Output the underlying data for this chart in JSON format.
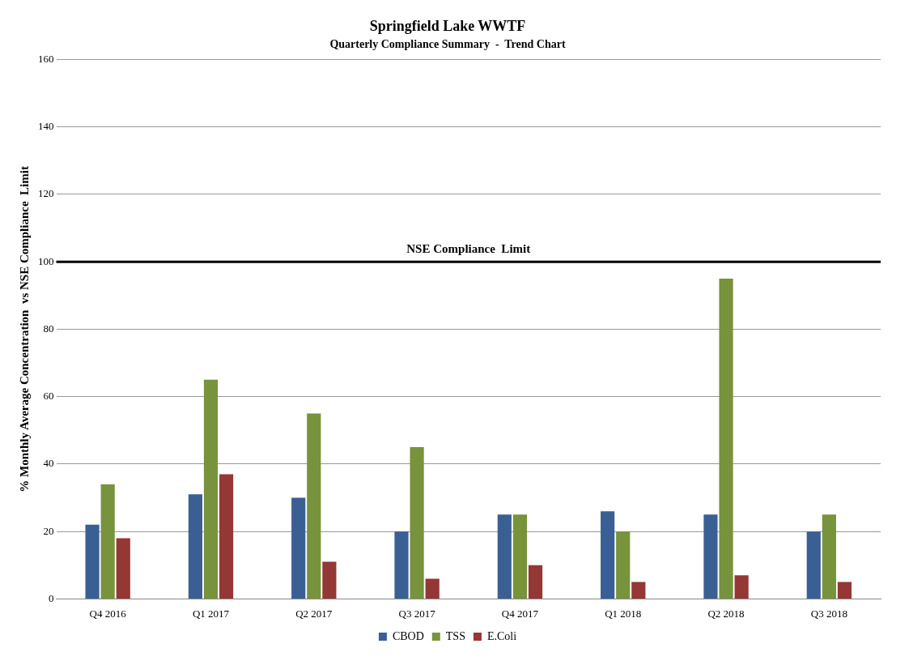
{
  "chart_data": {
    "type": "bar",
    "title": "Springfield Lake WWTF",
    "subtitle": "Quarterly Compliance Summary  -  Trend Chart",
    "ylabel": "% Monthly Average Concentration  vs NSE Compliance  Limit",
    "categories": [
      "Q4 2016",
      "Q1 2017",
      "Q2 2017",
      "Q3 2017",
      "Q4 2017",
      "Q1 2018",
      "Q2 2018",
      "Q3 2018"
    ],
    "series": [
      {
        "name": "CBOD",
        "color": "#3a5f94",
        "values": [
          22,
          31,
          30,
          20,
          25,
          26,
          25,
          20
        ]
      },
      {
        "name": "TSS",
        "color": "#77933c",
        "values": [
          34,
          65,
          55,
          45,
          25,
          20,
          95,
          25
        ]
      },
      {
        "name": "E.Coli",
        "color": "#953735",
        "values": [
          18,
          37,
          11,
          6,
          10,
          5,
          7,
          5
        ]
      }
    ],
    "ylim": [
      0,
      160
    ],
    "yticks": [
      0,
      20,
      40,
      60,
      80,
      100,
      120,
      140,
      160
    ],
    "grid": "y",
    "legend": "bottom",
    "ref_lines": [
      {
        "axis": "y",
        "value": 100,
        "label": "NSE Compliance  Limit",
        "color": "#000000"
      }
    ]
  }
}
